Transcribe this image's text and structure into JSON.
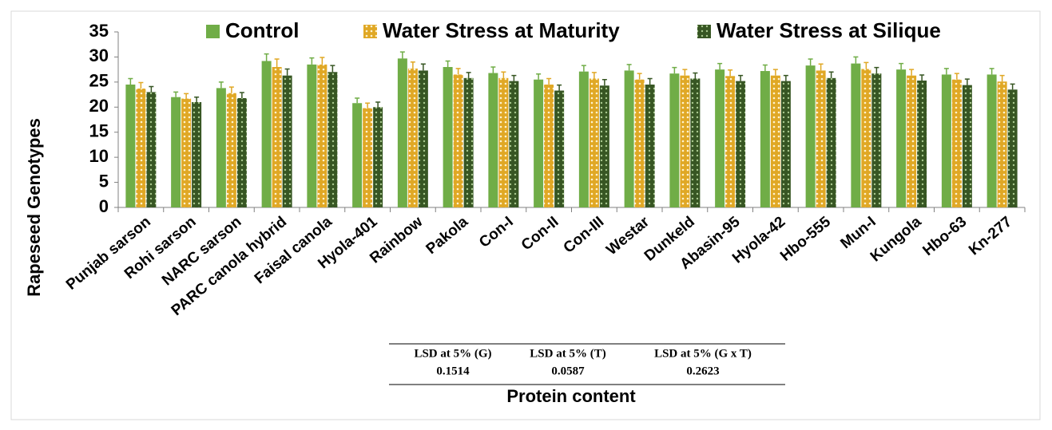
{
  "chart_data": {
    "type": "bar",
    "ylabel": "Rapeseed Genotypes",
    "xlabel": "Protein content",
    "categories": [
      "Punjab sarson",
      "Rohi sarson",
      "NARC sarson",
      "PARC canola hybrid",
      "Faisal canola",
      "Hyola-401",
      "Rainbow",
      "Pakola",
      "Con-I",
      "Con-II",
      "Con-III",
      "Westar",
      "Dunkeld",
      "Abasin-95",
      "Hyola-42",
      "Hbo-555",
      "Mun-I",
      "Kungola",
      "Hbo-63",
      "Kn-277"
    ],
    "series": [
      {
        "name": "Control",
        "color": "#70ad47",
        "values": [
          24.5,
          22,
          23.8,
          29.2,
          28.5,
          20.8,
          29.7,
          28,
          26.8,
          25.5,
          27.1,
          27.3,
          26.7,
          27.5,
          27.2,
          28.3,
          28.7,
          27.5,
          26.5,
          26.5
        ],
        "errors": [
          1.2,
          1,
          1.2,
          1.4,
          1.3,
          1,
          1.3,
          1.2,
          1.2,
          1.1,
          1.2,
          1.2,
          1.2,
          1.2,
          1.2,
          1.3,
          1.3,
          1.2,
          1.2,
          1.2
        ]
      },
      {
        "name": "Water Stress at Maturity",
        "color": "#e0a825",
        "values": [
          23.7,
          21.7,
          22.8,
          28,
          28.5,
          19.8,
          27.7,
          26.5,
          25.8,
          24.5,
          25.7,
          25.5,
          26.3,
          26.2,
          26.3,
          27.3,
          27.6,
          26.3,
          25.5,
          25.1
        ],
        "errors": [
          1.2,
          1,
          1.2,
          1.6,
          1.4,
          1,
          1.3,
          1.2,
          1.2,
          1.2,
          1.2,
          1.2,
          1.2,
          1.2,
          1.2,
          1.3,
          1.3,
          1.2,
          1.2,
          1.2
        ]
      },
      {
        "name": "Water Stress at Silique",
        "color": "#375623",
        "values": [
          23,
          21,
          21.8,
          26.3,
          27,
          20,
          27.3,
          25.8,
          25.2,
          23.3,
          24.3,
          24.5,
          25.7,
          25.2,
          25.2,
          25.8,
          26.7,
          25.3,
          24.4,
          23.5
        ],
        "errors": [
          1.1,
          1,
          1.1,
          1.3,
          1.3,
          1,
          1.3,
          1.1,
          1.1,
          1.1,
          1.2,
          1.2,
          1.1,
          1.1,
          1.1,
          1.2,
          1.2,
          1.1,
          1.2,
          1.1
        ]
      }
    ],
    "ylim": [
      0,
      35
    ],
    "yticks": [
      0,
      5,
      10,
      15,
      20,
      25,
      30,
      35
    ],
    "lsd_table": {
      "headers": [
        "LSD at 5% (G)",
        "LSD at 5% (T)",
        "LSD at 5% (G x T)"
      ],
      "values": [
        0.1514,
        0.0587,
        0.2623
      ]
    }
  }
}
